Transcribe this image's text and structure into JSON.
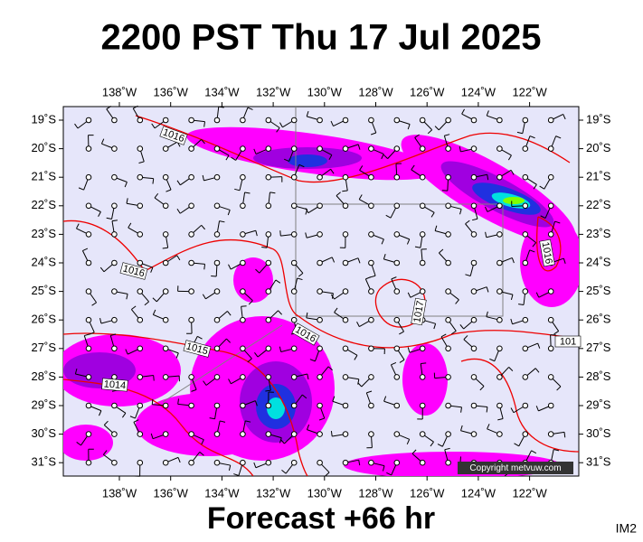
{
  "header": {
    "title": "2200 PST Thu 17 Jul 2025"
  },
  "map": {
    "lon_labels": [
      "138˚W",
      "136˚W",
      "134˚W",
      "132˚W",
      "130˚W",
      "128˚W",
      "126˚W",
      "124˚W",
      "122˚W"
    ],
    "lat_labels": [
      "19˚S",
      "20˚S",
      "21˚S",
      "22˚S",
      "23˚S",
      "24˚S",
      "25˚S",
      "26˚S",
      "27˚S",
      "28˚S",
      "29˚S",
      "30˚S",
      "31˚S"
    ],
    "isobar_labels": [
      "1016",
      "1016",
      "1015",
      "1014",
      "1016",
      "1017",
      "1016",
      "101"
    ],
    "copyright": "Copyright metvuw.com"
  },
  "footer": {
    "forecast": "Forecast +66 hr",
    "code": "IM2"
  }
}
